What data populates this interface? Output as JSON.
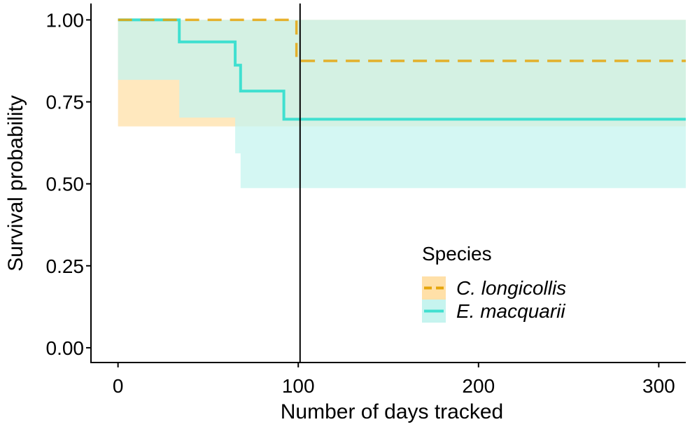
{
  "chart_data": {
    "type": "line",
    "subtype": "step",
    "xlabel": "Number of days tracked",
    "ylabel": "Survival probability",
    "xlim": [
      -15,
      315
    ],
    "ylim": [
      -0.045,
      1.05
    ],
    "x_ticks": [
      0,
      100,
      200,
      300
    ],
    "y_ticks": [
      0.0,
      0.25,
      0.5,
      0.75,
      1.0
    ],
    "y_tick_labels": [
      "0.00",
      "0.25",
      "0.50",
      "0.75",
      "1.00"
    ],
    "grid": false,
    "reference_line": {
      "x": 101,
      "color": "#000000"
    },
    "legend": {
      "title": "Species",
      "position": "right"
    },
    "series": [
      {
        "name": "C. longicollis",
        "color": "#E5A50A",
        "fill_color": "#FFE0A8",
        "line_style": "dashed",
        "x": [
          0,
          99,
          315
        ],
        "y": [
          1.0,
          0.875,
          0.875
        ],
        "ci_upper": [
          1.0,
          1.0,
          1.0
        ],
        "ci_lower": [
          1.0,
          0.675,
          0.675
        ]
      },
      {
        "name": "E. macquarii",
        "color": "#40E0D0",
        "fill_color": "#C6F4EF",
        "line_style": "solid",
        "x": [
          0,
          34,
          65,
          68,
          92,
          315
        ],
        "y": [
          1.0,
          0.933,
          0.862,
          0.783,
          0.697,
          0.697
        ],
        "ci_upper": [
          1.0,
          1.0,
          1.0,
          1.0,
          1.0,
          1.0
        ],
        "ci_lower": [
          1.0,
          0.817,
          0.702,
          0.593,
          0.487,
          0.487
        ]
      }
    ]
  }
}
